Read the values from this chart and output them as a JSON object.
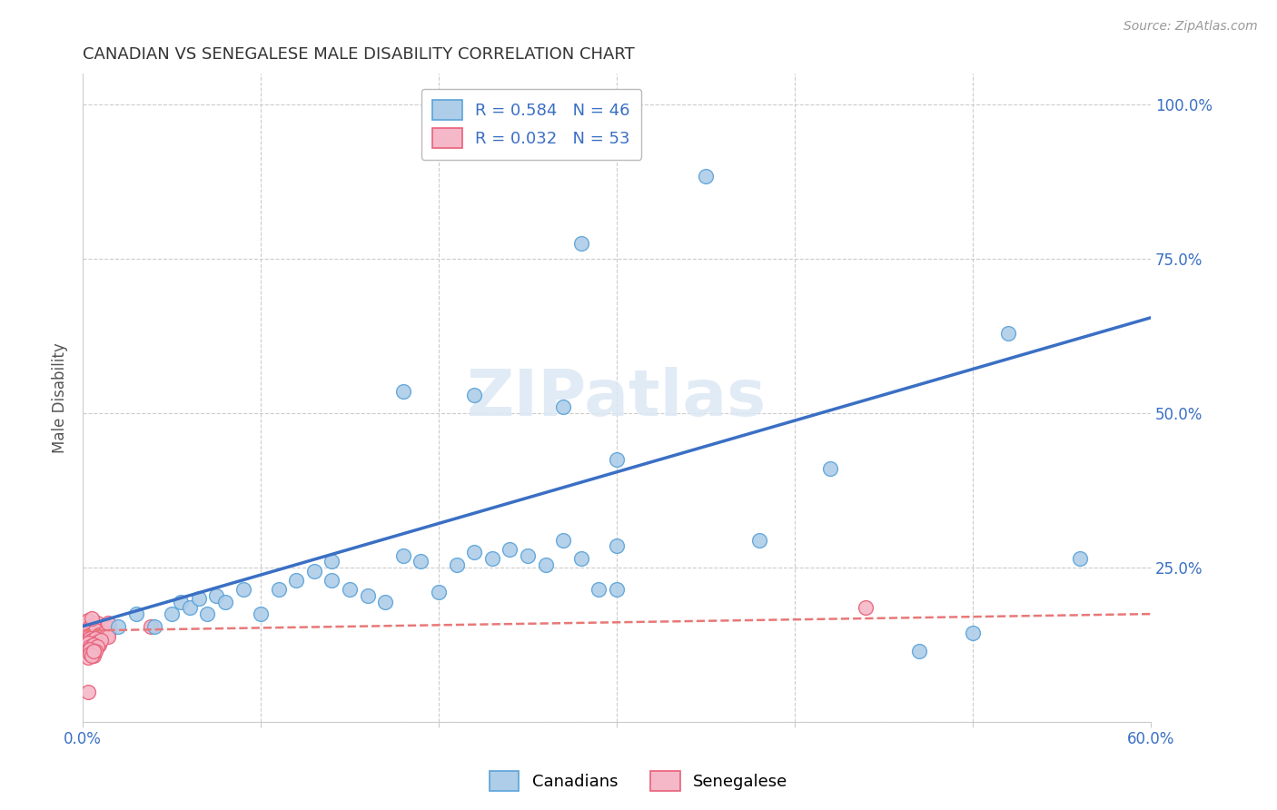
{
  "title": "CANADIAN VS SENEGALESE MALE DISABILITY CORRELATION CHART",
  "source": "Source: ZipAtlas.com",
  "ylabel": "Male Disability",
  "xlabel": "",
  "xlim": [
    0.0,
    0.6
  ],
  "ylim": [
    0.0,
    1.05
  ],
  "xticks": [
    0.0,
    0.1,
    0.2,
    0.3,
    0.4,
    0.5,
    0.6
  ],
  "xticklabels": [
    "0.0%",
    "",
    "",
    "",
    "",
    "",
    "60.0%"
  ],
  "yticks": [
    0.0,
    0.25,
    0.5,
    0.75,
    1.0
  ],
  "yticklabels": [
    "",
    "25.0%",
    "50.0%",
    "75.0%",
    "100.0%"
  ],
  "canadian_R": 0.584,
  "canadian_N": 46,
  "senegalese_R": 0.032,
  "senegalese_N": 53,
  "canadian_color": "#aecde8",
  "canadian_edge_color": "#5ba3d9",
  "senegalese_color": "#f5b8c8",
  "senegalese_edge_color": "#e8607a",
  "trend_canadian_color": "#3a6fc4",
  "trend_senegalese_color": "#e87878",
  "background_color": "#ffffff",
  "grid_color": "#cccccc",
  "title_color": "#333333",
  "axis_label_color": "#555555",
  "right_tick_color": "#3a6fc4",
  "watermark_color": "#dce8f5",
  "canadians_x": [
    0.02,
    0.03,
    0.04,
    0.05,
    0.055,
    0.06,
    0.065,
    0.07,
    0.075,
    0.08,
    0.09,
    0.1,
    0.11,
    0.12,
    0.13,
    0.14,
    0.14,
    0.15,
    0.16,
    0.17,
    0.18,
    0.19,
    0.2,
    0.21,
    0.22,
    0.23,
    0.24,
    0.25,
    0.26,
    0.27,
    0.28,
    0.29,
    0.3,
    0.22,
    0.27,
    0.3,
    0.38,
    0.42,
    0.47,
    0.5,
    0.52,
    0.56,
    0.3,
    0.28,
    0.18,
    0.35
  ],
  "canadians_y": [
    0.155,
    0.175,
    0.155,
    0.175,
    0.195,
    0.185,
    0.2,
    0.175,
    0.205,
    0.195,
    0.215,
    0.175,
    0.215,
    0.23,
    0.245,
    0.23,
    0.26,
    0.215,
    0.205,
    0.195,
    0.27,
    0.26,
    0.21,
    0.255,
    0.275,
    0.265,
    0.28,
    0.27,
    0.255,
    0.295,
    0.265,
    0.215,
    0.285,
    0.53,
    0.51,
    0.425,
    0.295,
    0.41,
    0.115,
    0.145,
    0.63,
    0.265,
    0.215,
    0.775,
    0.535,
    0.885
  ],
  "senegalese_x": [
    0.003,
    0.004,
    0.005,
    0.006,
    0.007,
    0.008,
    0.009,
    0.01,
    0.011,
    0.012,
    0.013,
    0.014,
    0.015,
    0.003,
    0.004,
    0.005,
    0.006,
    0.007,
    0.008,
    0.009,
    0.01,
    0.011,
    0.012,
    0.013,
    0.014,
    0.003,
    0.004,
    0.005,
    0.006,
    0.007,
    0.008,
    0.009,
    0.01,
    0.003,
    0.004,
    0.005,
    0.006,
    0.007,
    0.008,
    0.003,
    0.004,
    0.005,
    0.006,
    0.007,
    0.003,
    0.004,
    0.005,
    0.006,
    0.014,
    0.038,
    0.44,
    0.003,
    0.005
  ],
  "senegalese_y": [
    0.165,
    0.155,
    0.15,
    0.158,
    0.145,
    0.16,
    0.148,
    0.152,
    0.142,
    0.148,
    0.155,
    0.145,
    0.152,
    0.148,
    0.142,
    0.138,
    0.145,
    0.148,
    0.138,
    0.142,
    0.135,
    0.14,
    0.145,
    0.14,
    0.138,
    0.13,
    0.135,
    0.132,
    0.128,
    0.135,
    0.13,
    0.125,
    0.132,
    0.128,
    0.122,
    0.12,
    0.125,
    0.118,
    0.122,
    0.115,
    0.118,
    0.112,
    0.108,
    0.115,
    0.105,
    0.11,
    0.108,
    0.115,
    0.16,
    0.155,
    0.185,
    0.048,
    0.168
  ],
  "canadian_trend_x0": 0.0,
  "canadian_trend_y0": 0.155,
  "canadian_trend_x1": 0.6,
  "canadian_trend_y1": 0.655,
  "senegalese_trend_x0": 0.0,
  "senegalese_trend_y0": 0.148,
  "senegalese_trend_x1": 0.6,
  "senegalese_trend_y1": 0.175
}
